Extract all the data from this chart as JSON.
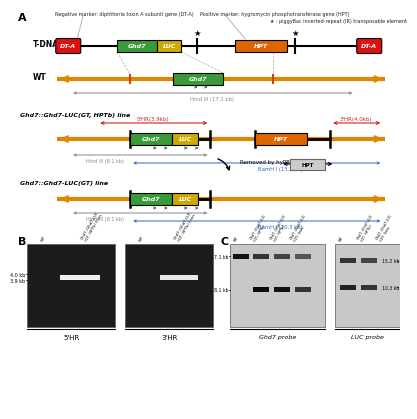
{
  "bg_color": "#ffffff",
  "panel_A": {
    "neg_marker": "Negative marker: diphtheria toxin A subunit gene (DT-A)",
    "pos_marker": "Positive marker: hygromycin phosphotransferase gene (HPT)",
    "piggybac_note": "★ : piggyBac inverted-repeat (IR) transposable element",
    "hind_wt": "Hind III (17.1 kb)",
    "hind_gt_hpt": "Hind III (8.1 kb)",
    "bamh_gt_hpt": "BamH I (15.2 kb)",
    "hind_gt": "Hind III (8.1 kb)",
    "bamh_gt": "BamH I (10.3 kb)",
    "hr5_label": "5'HR(3.9kb)",
    "hr3_label": "3'HR(4.0kb)",
    "removed_label": "Removed by hyPBase",
    "line1_label": "Ghd7::Ghd7-LUC(GT, HPTb) line",
    "line2_label": "Ghd7::Ghd7-LUC(GT) line"
  },
  "panel_B": {
    "bands_left": [
      "4.0 kb",
      "3.9 kb"
    ],
    "probe1": "5'HR",
    "probe2": "3'HR"
  },
  "panel_C": {
    "bands_left": [
      "17.1 kb",
      "8.1 kb"
    ],
    "bands_right": [
      "15.2 kb",
      "10.3 kb"
    ],
    "probe1": "Ghd7 probe",
    "probe2": "LUC probe"
  }
}
